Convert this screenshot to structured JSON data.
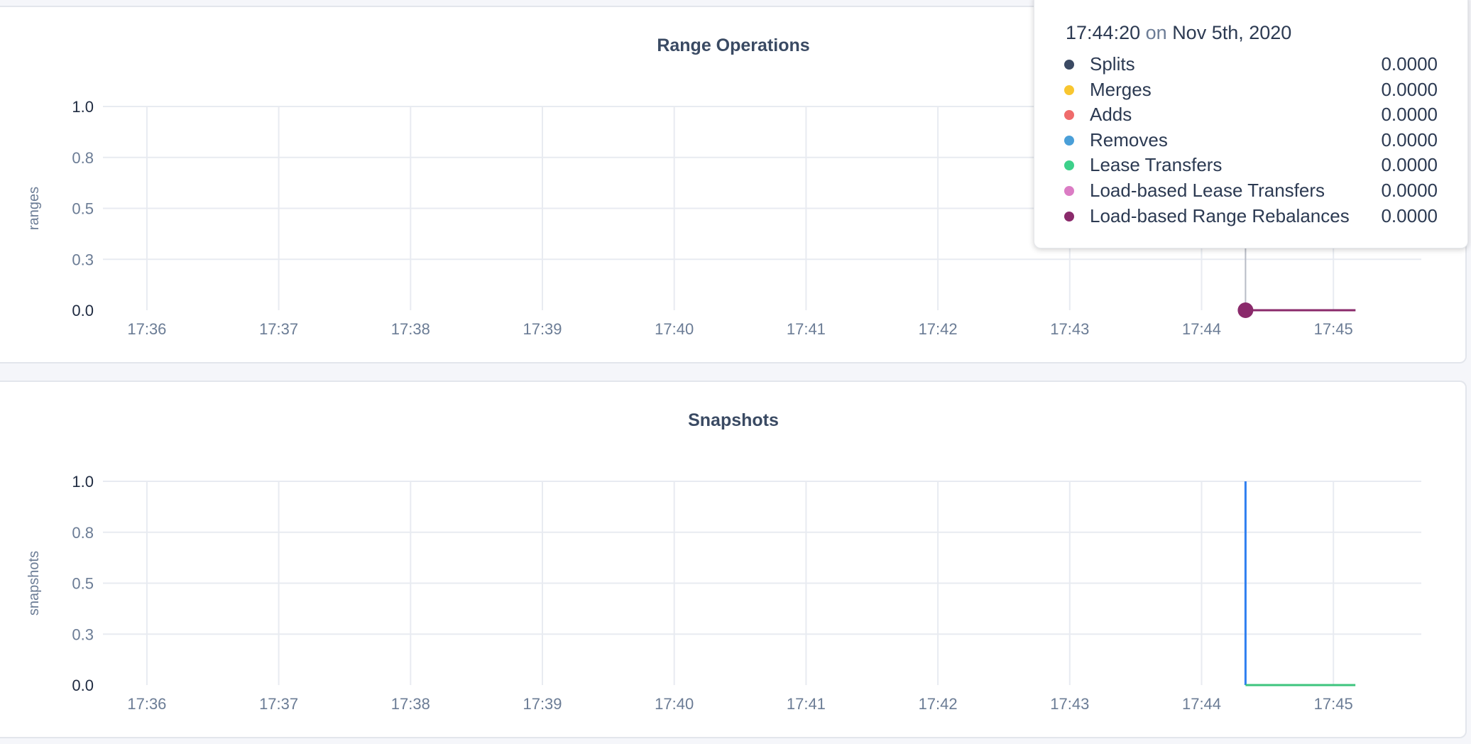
{
  "chart_data": [
    {
      "type": "line",
      "title": "Range Operations",
      "ylabel": "ranges",
      "ylim": [
        0,
        1
      ],
      "yticks": [
        "0.0",
        "0.3",
        "0.5",
        "0.8",
        "1.0"
      ],
      "ytick_values": [
        0,
        0.25,
        0.5,
        0.75,
        1
      ],
      "xticks": [
        "17:36",
        "17:37",
        "17:38",
        "17:39",
        "17:40",
        "17:41",
        "17:42",
        "17:43",
        "17:44",
        "17:45"
      ],
      "xlim": [
        "17:35:40",
        "17:45:40"
      ],
      "grid": true,
      "series": [
        {
          "name": "Splits",
          "color": "#3b4a63",
          "points": [
            [
              "17:44:20",
              0
            ],
            [
              "17:45:10",
              0
            ]
          ]
        },
        {
          "name": "Merges",
          "color": "#f8c630",
          "points": [
            [
              "17:44:20",
              0
            ],
            [
              "17:45:10",
              0
            ]
          ]
        },
        {
          "name": "Adds",
          "color": "#ef6b6b",
          "points": [
            [
              "17:44:20",
              0
            ],
            [
              "17:45:10",
              0
            ]
          ]
        },
        {
          "name": "Removes",
          "color": "#4a9fd8",
          "points": [
            [
              "17:44:20",
              0
            ],
            [
              "17:45:10",
              0
            ]
          ]
        },
        {
          "name": "Lease Transfers",
          "color": "#3dd08a",
          "points": [
            [
              "17:44:20",
              0
            ],
            [
              "17:45:10",
              0
            ]
          ]
        },
        {
          "name": "Load-based Lease Transfers",
          "color": "#db7cc4",
          "points": [
            [
              "17:44:20",
              0
            ],
            [
              "17:45:10",
              0
            ]
          ]
        },
        {
          "name": "Load-based Range Rebalances",
          "color": "#8a2a6b",
          "points": [
            [
              "17:44:20",
              0
            ],
            [
              "17:45:10",
              0
            ]
          ]
        }
      ],
      "hover_time": "17:44:20",
      "tooltip": {
        "time": "17:44:20",
        "on": "on",
        "date": "Nov 5th, 2020",
        "rows": [
          {
            "label": "Splits",
            "value": "0.0000",
            "color": "#3b4a63"
          },
          {
            "label": "Merges",
            "value": "0.0000",
            "color": "#f8c630"
          },
          {
            "label": "Adds",
            "value": "0.0000",
            "color": "#ef6b6b"
          },
          {
            "label": "Removes",
            "value": "0.0000",
            "color": "#4a9fd8"
          },
          {
            "label": "Lease Transfers",
            "value": "0.0000",
            "color": "#3dd08a"
          },
          {
            "label": "Load-based Lease Transfers",
            "value": "0.0000",
            "color": "#db7cc4"
          },
          {
            "label": "Load-based Range Rebalances",
            "value": "0.0000",
            "color": "#8a2a6b"
          }
        ]
      }
    },
    {
      "type": "line",
      "title": "Snapshots",
      "ylabel": "snapshots",
      "ylim": [
        0,
        1
      ],
      "yticks": [
        "0.0",
        "0.3",
        "0.5",
        "0.8",
        "1.0"
      ],
      "ytick_values": [
        0,
        0.25,
        0.5,
        0.75,
        1
      ],
      "xticks": [
        "17:36",
        "17:37",
        "17:38",
        "17:39",
        "17:40",
        "17:41",
        "17:42",
        "17:43",
        "17:44",
        "17:45"
      ],
      "xlim": [
        "17:35:40",
        "17:45:40"
      ],
      "grid": true,
      "series": [
        {
          "color": "#2f7ff0",
          "points": [
            [
              "17:44:20",
              1
            ],
            [
              "17:44:20",
              0
            ]
          ]
        },
        {
          "color": "#3dc47e",
          "points": [
            [
              "17:44:20",
              0
            ],
            [
              "17:45:10",
              0
            ]
          ]
        }
      ]
    }
  ]
}
